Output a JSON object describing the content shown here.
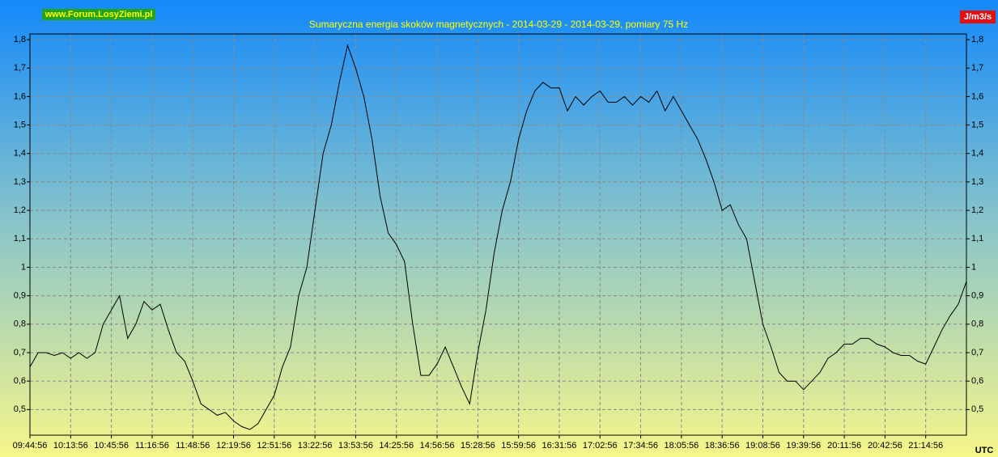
{
  "chart_data": {
    "type": "line",
    "title": "Sumaryczna energia skoków magnetycznych - 2014-03-29 - 2014-03-29, pomiary 75 Hz",
    "watermark": "www.Forum.LosyZiemi.pl",
    "unit": "J/m3/s",
    "x_label": "UTC",
    "xtick_labels": [
      "09:44:56",
      "10:13:56",
      "10:45:56",
      "11:16:56",
      "11:48:56",
      "12:19:56",
      "12:51:56",
      "13:22:56",
      "13:53:56",
      "14:25:56",
      "14:56:56",
      "15:28:56",
      "15:59:56",
      "16:31:56",
      "17:02:56",
      "17:34:56",
      "18:05:56",
      "18:36:56",
      "19:08:56",
      "19:39:56",
      "20:11:56",
      "20:42:56",
      "21:14:56"
    ],
    "series": [
      {
        "color": "#000000",
        "values": [
          0.65,
          0.7,
          0.7,
          0.69,
          0.7,
          0.68,
          0.7,
          0.68,
          0.7,
          0.8,
          0.85,
          0.9,
          0.75,
          0.8,
          0.88,
          0.85,
          0.87,
          0.78,
          0.7,
          0.67,
          0.6,
          0.52,
          0.5,
          0.48,
          0.49,
          0.46,
          0.44,
          0.43,
          0.45,
          0.5,
          0.55,
          0.65,
          0.72,
          0.9,
          1.0,
          1.2,
          1.4,
          1.5,
          1.65,
          1.78,
          1.7,
          1.6,
          1.45,
          1.25,
          1.12,
          1.08,
          1.02,
          0.8,
          0.62,
          0.62,
          0.66,
          0.72,
          0.65,
          0.58,
          0.52,
          0.7,
          0.85,
          1.05,
          1.2,
          1.3,
          1.45,
          1.55,
          1.62,
          1.65,
          1.63,
          1.63,
          1.55,
          1.6,
          1.57,
          1.6,
          1.62,
          1.58,
          1.58,
          1.6,
          1.57,
          1.6,
          1.58,
          1.62,
          1.55,
          1.6,
          1.55,
          1.5,
          1.45,
          1.38,
          1.3,
          1.2,
          1.22,
          1.15,
          1.1,
          0.95,
          0.8,
          0.72,
          0.63,
          0.6,
          0.6,
          0.57,
          0.6,
          0.63,
          0.68,
          0.7,
          0.73,
          0.73,
          0.75,
          0.75,
          0.73,
          0.72,
          0.7,
          0.69,
          0.69,
          0.67,
          0.66,
          0.72,
          0.78,
          0.83,
          0.87,
          0.95
        ]
      }
    ],
    "ylim": [
      0.41,
      1.82
    ],
    "yticks": [
      {
        "value": 0.5,
        "label": "0,5"
      },
      {
        "value": 0.6,
        "label": "0,6"
      },
      {
        "value": 0.7,
        "label": "0,7"
      },
      {
        "value": 0.8,
        "label": "0,8"
      },
      {
        "value": 0.9,
        "label": "0,9"
      },
      1,
      {
        "value": 1.1,
        "label": "1,1"
      },
      {
        "value": 1.2,
        "label": "1,2"
      },
      {
        "value": 1.3,
        "label": "1,3"
      },
      {
        "value": 1.4,
        "label": "1,4"
      },
      {
        "value": 1.5,
        "label": "1,5"
      },
      {
        "value": 1.6,
        "label": "1,6"
      },
      {
        "value": 1.7,
        "label": "1,7"
      },
      {
        "value": 1.8,
        "label": "1,8"
      }
    ],
    "grid": true
  }
}
